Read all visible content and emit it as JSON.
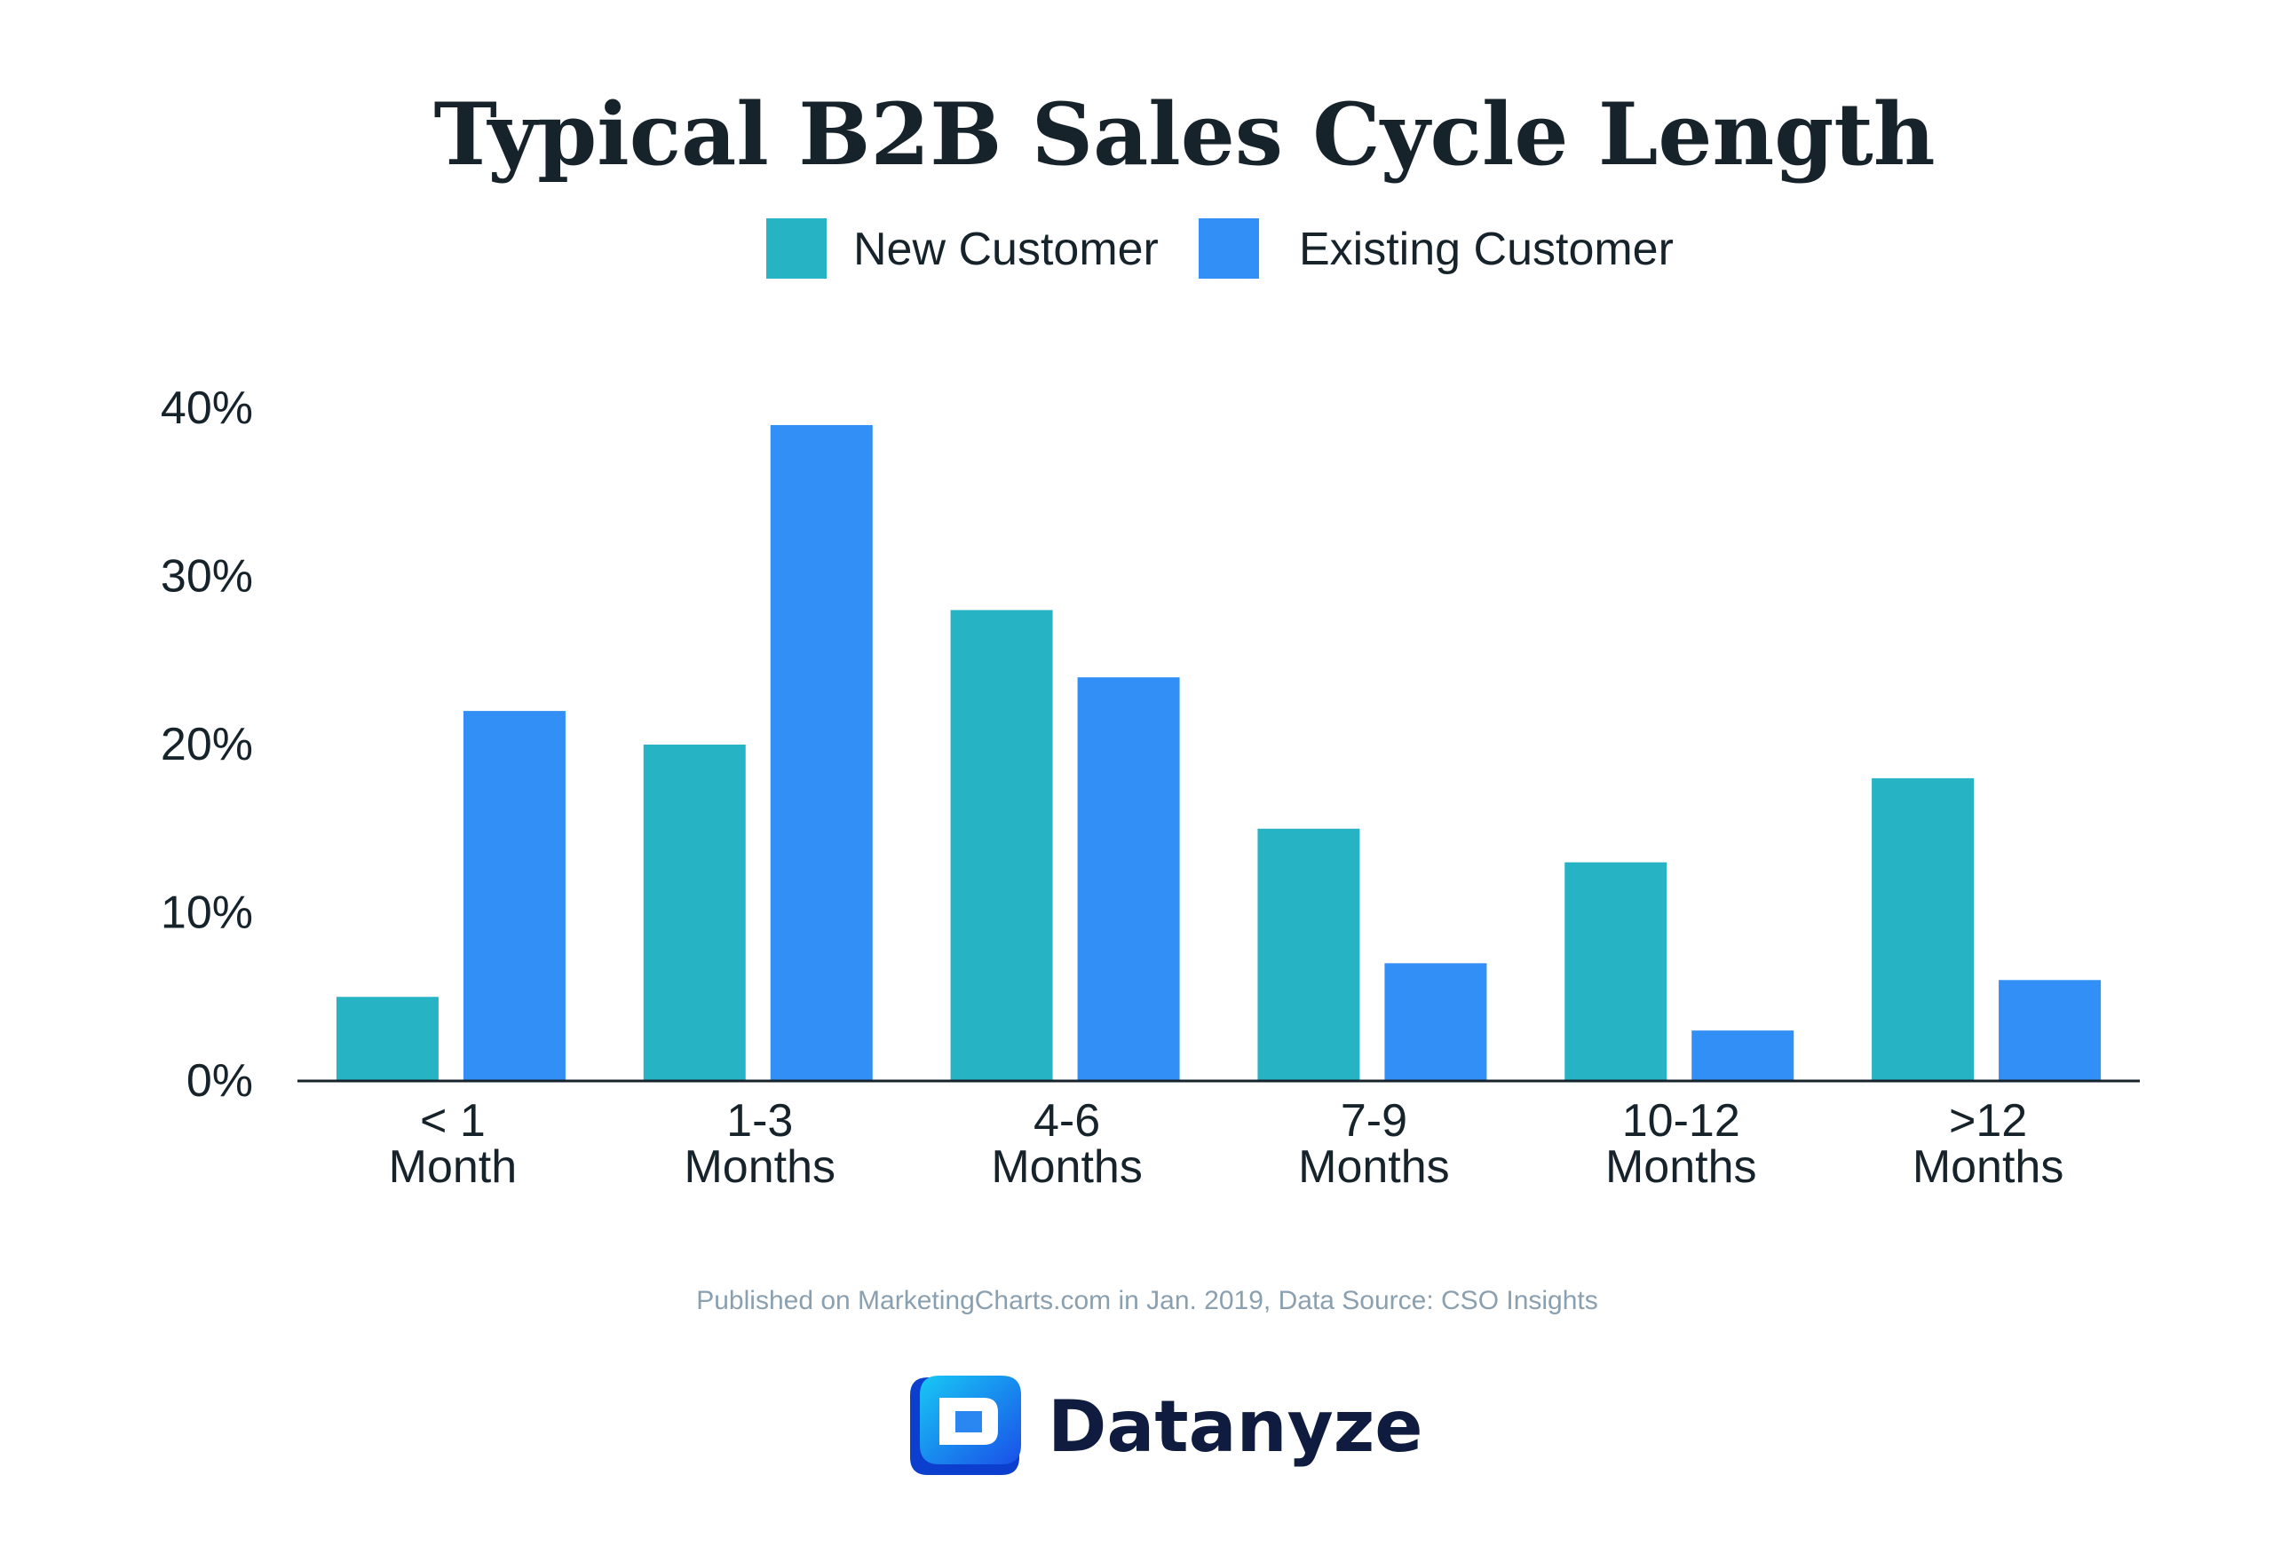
{
  "chart_data": {
    "type": "bar",
    "title": "Typical B2B Sales Cycle Length",
    "categories": [
      [
        "< 1",
        "Month"
      ],
      [
        "1-3",
        "Months"
      ],
      [
        "4-6",
        "Months"
      ],
      [
        "7-9",
        "Months"
      ],
      [
        "10-12",
        "Months"
      ],
      [
        ">12",
        "Months"
      ]
    ],
    "series": [
      {
        "name": "New Customer",
        "color": "#26b3c4",
        "values": [
          5,
          20,
          28,
          15,
          13,
          18
        ]
      },
      {
        "name": "Existing Customer",
        "color": "#318ff5",
        "values": [
          22,
          39,
          24,
          7,
          3,
          6
        ]
      }
    ],
    "ylim": [
      0,
      40
    ],
    "yticks": [
      0,
      10,
      20,
      30,
      40
    ],
    "ytick_labels": [
      "0%",
      "10%",
      "20%",
      "30%",
      "40%"
    ],
    "xlabel": "",
    "ylabel": "",
    "grid": false,
    "legend_position": "top-center"
  },
  "source": "Published on MarketingCharts.com in Jan. 2019, Data Source: CSO Insights",
  "brand": {
    "name": "Datanyze",
    "logo_icon": "datanyze-logo-icon"
  }
}
